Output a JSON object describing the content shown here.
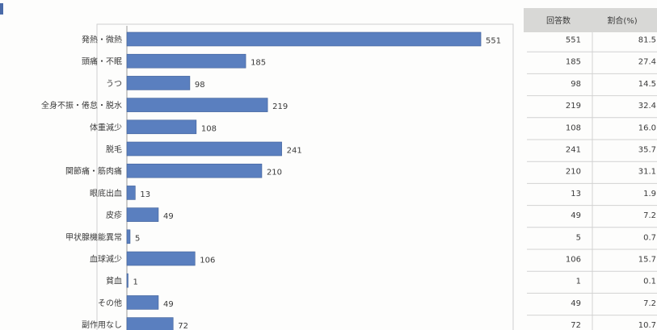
{
  "table": {
    "headers": [
      "回答数",
      "割合(%)"
    ]
  },
  "chart_data": {
    "type": "bar",
    "orientation": "horizontal",
    "title": "",
    "xlabel": "",
    "ylabel": "",
    "categories": [
      "発熱・微熱",
      "頭痛・不眠",
      "うつ",
      "全身不振・倦怠・脱水",
      "体重減少",
      "脱毛",
      "関節痛・筋肉痛",
      "眼底出血",
      "皮疹",
      "甲状腺機能異常",
      "血球減少",
      "貧血",
      "その他",
      "副作用なし"
    ],
    "values": [
      551,
      185,
      98,
      219,
      108,
      241,
      210,
      13,
      49,
      5,
      106,
      1,
      49,
      72
    ],
    "percent": [
      "81.5",
      "27.4",
      "14.5",
      "32.4",
      "16.0",
      "35.7",
      "31.1",
      "1.9",
      "7.2",
      "0.7",
      "15.7",
      "0.1",
      "7.2",
      "10.7"
    ],
    "xlim": [
      0,
      600
    ],
    "grid": false,
    "legend": "none",
    "bar_color": "#5a7fbf"
  }
}
